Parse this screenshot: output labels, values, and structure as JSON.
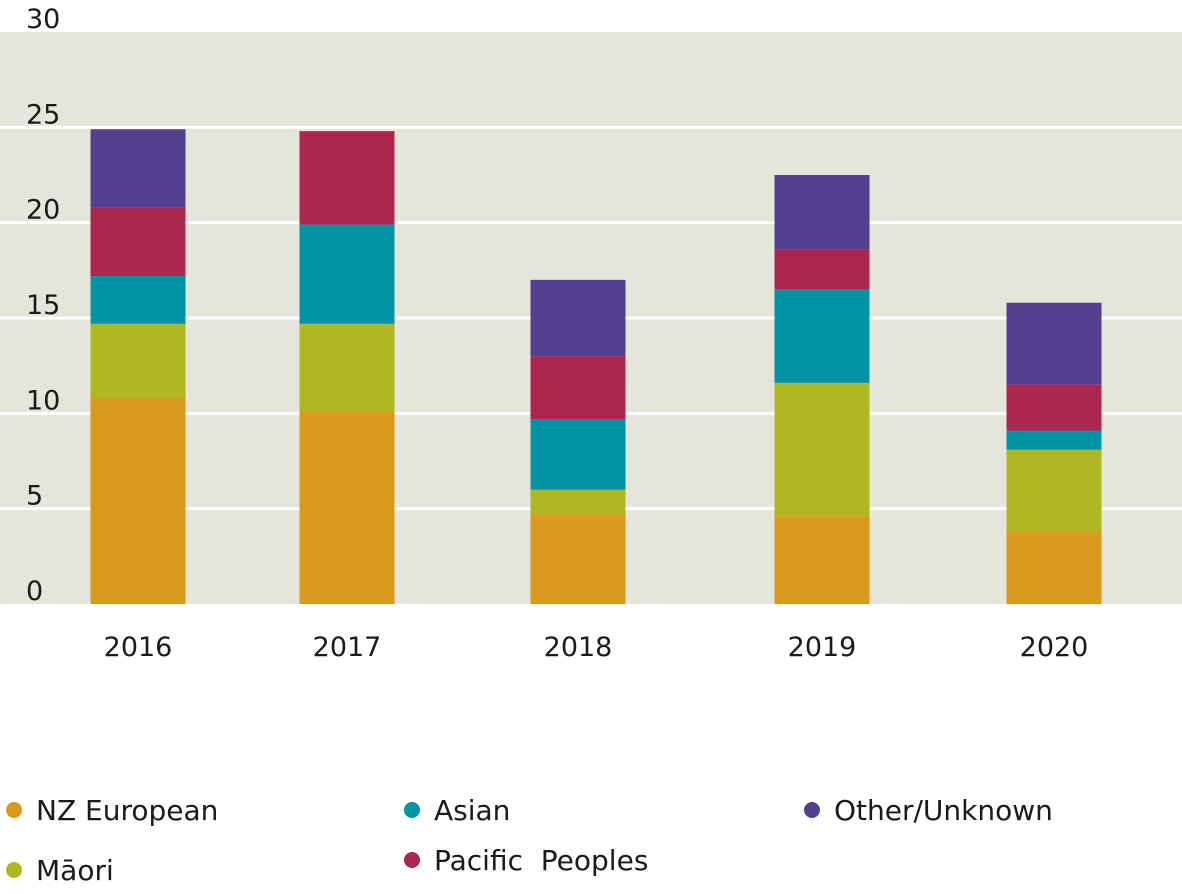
{
  "chart_data": {
    "type": "bar",
    "stacked": true,
    "title": "",
    "xlabel": "",
    "ylabel": "",
    "ylim": [
      0,
      30
    ],
    "yticks": [
      0,
      5,
      10,
      15,
      20,
      25,
      30
    ],
    "categories": [
      "2016",
      "2017",
      "2018",
      "2019",
      "2020"
    ],
    "grid": true,
    "legend_position": "bottom",
    "background": "#e6e5da",
    "series": [
      {
        "name": "NZ European",
        "color": "#d9991a",
        "values": [
          10.8,
          10.1,
          4.7,
          4.6,
          3.8
        ]
      },
      {
        "name": "Māori",
        "color": "#afb820",
        "values": [
          3.9,
          4.6,
          1.3,
          7.0,
          4.3
        ]
      },
      {
        "name": "Asian",
        "color": "#0092a5",
        "values": [
          2.5,
          5.2,
          3.7,
          4.9,
          1.0
        ]
      },
      {
        "name": "Pacific  Peoples",
        "color": "#ad264f",
        "values": [
          3.6,
          4.9,
          3.3,
          2.1,
          2.4
        ]
      },
      {
        "name": "Other/Unknown",
        "color": "#52418f",
        "values": [
          4.1,
          0.0,
          4.0,
          3.9,
          4.3
        ]
      }
    ]
  }
}
